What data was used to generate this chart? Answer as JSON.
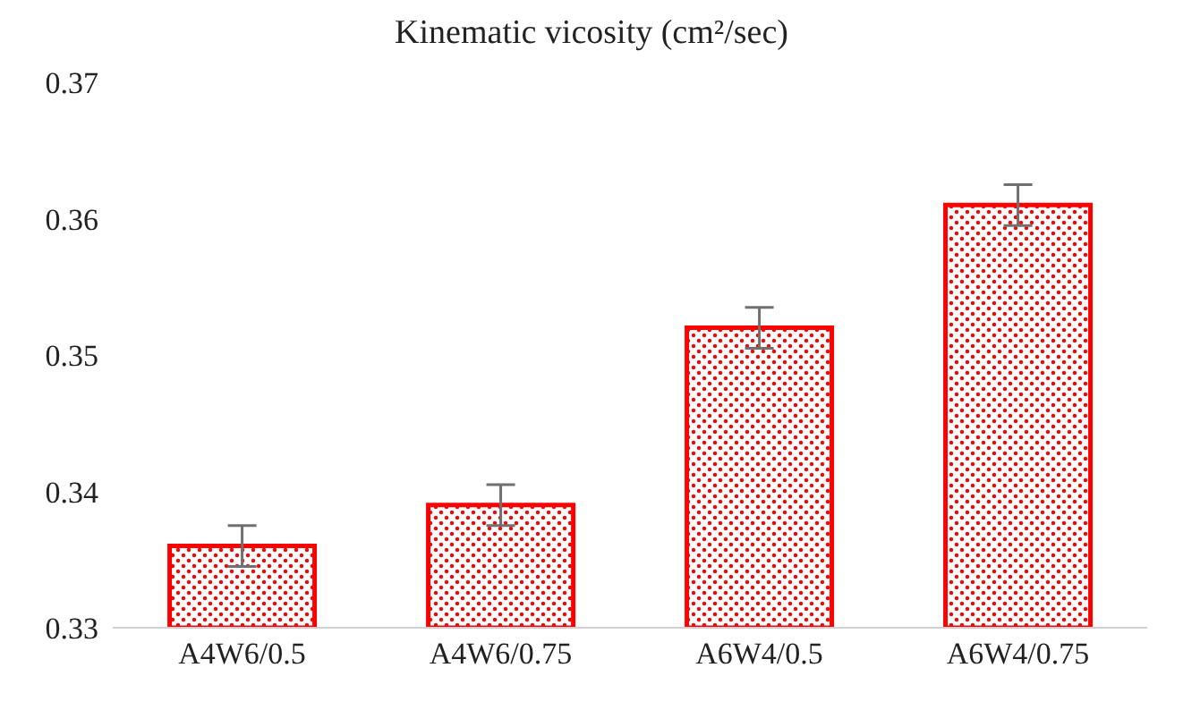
{
  "chart_data": {
    "type": "bar",
    "title": "Kinematic vicosity (cm²/sec)",
    "categories": [
      "A4W6/0.5",
      "A4W6/0.75",
      "A6W4/0.5",
      "A6W4/0.75"
    ],
    "values": [
      0.336,
      0.339,
      0.352,
      0.361
    ],
    "errors": [
      0.0015,
      0.0015,
      0.0015,
      0.0015
    ],
    "color": "#ff0000",
    "ylim": [
      0.33,
      0.37
    ],
    "yticks": [
      0.33,
      0.34,
      0.35,
      0.36,
      0.37
    ],
    "grid": false,
    "legend": false
  }
}
